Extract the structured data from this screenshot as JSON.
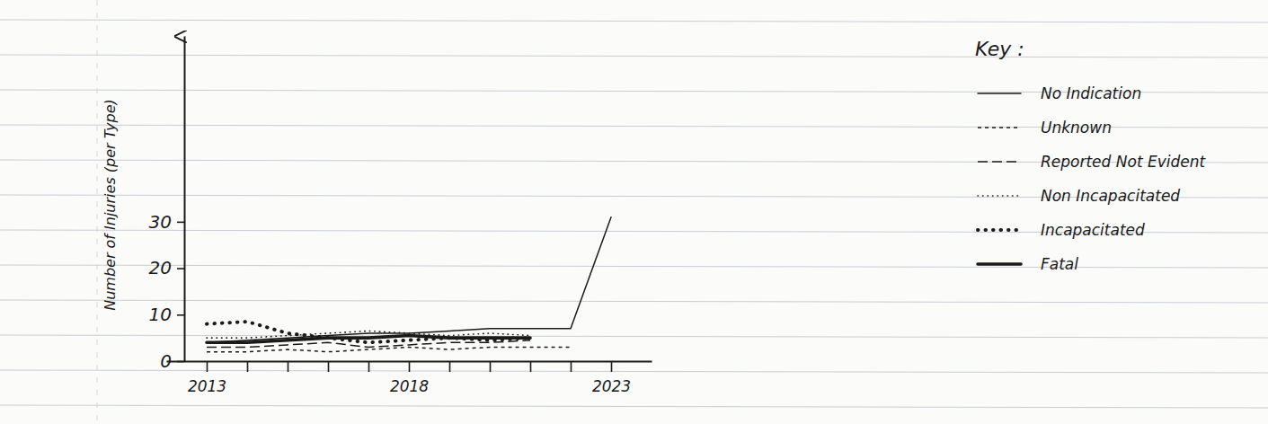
{
  "chart_data": {
    "type": "line",
    "y_label": "Number of Injuries (per Type)",
    "legend_title": "Key :",
    "legend": "upper right",
    "categories": [
      "2013",
      null,
      null,
      null,
      null,
      "2018",
      null,
      null,
      null,
      null,
      "2023"
    ],
    "ylim": [
      0,
      70
    ],
    "yticks": [
      0,
      10,
      20,
      30
    ],
    "grid": false,
    "series": [
      {
        "name": "No Indication",
        "color": "#1a1a1a",
        "line_style": "solid",
        "values": [
          4,
          4.5,
          5,
          5.5,
          6,
          6,
          6.5,
          7,
          7,
          7,
          31
        ]
      },
      {
        "name": "Unknown",
        "color": "#1a1a1a",
        "line_style": "dashed",
        "values": [
          2,
          2,
          2.5,
          2,
          2.5,
          3,
          2.5,
          3,
          3,
          3,
          null
        ]
      },
      {
        "name": "Reported Not Evident",
        "color": "#1a1a1a",
        "line_style": "longdash",
        "values": [
          3,
          3,
          3.5,
          4,
          3,
          3.5,
          4,
          4,
          4.5,
          null,
          null
        ]
      },
      {
        "name": "Non Incapacitated",
        "color": "#1a1a1a",
        "line_style": "dotted",
        "values": [
          5,
          5,
          5.5,
          6,
          6.5,
          6,
          5.5,
          6,
          5.5,
          null,
          null
        ]
      },
      {
        "name": "Incapacitated",
        "color": "#1a1a1a",
        "line_style": "dots",
        "values": [
          8,
          8.5,
          6,
          5,
          4,
          4.5,
          5,
          4.5,
          5,
          null,
          null
        ]
      },
      {
        "name": "Fatal",
        "color": "#1a1a1a",
        "line_style": "thick",
        "values": [
          4,
          4,
          4.5,
          5,
          5,
          5.5,
          5,
          5,
          5,
          null,
          null
        ]
      }
    ]
  }
}
